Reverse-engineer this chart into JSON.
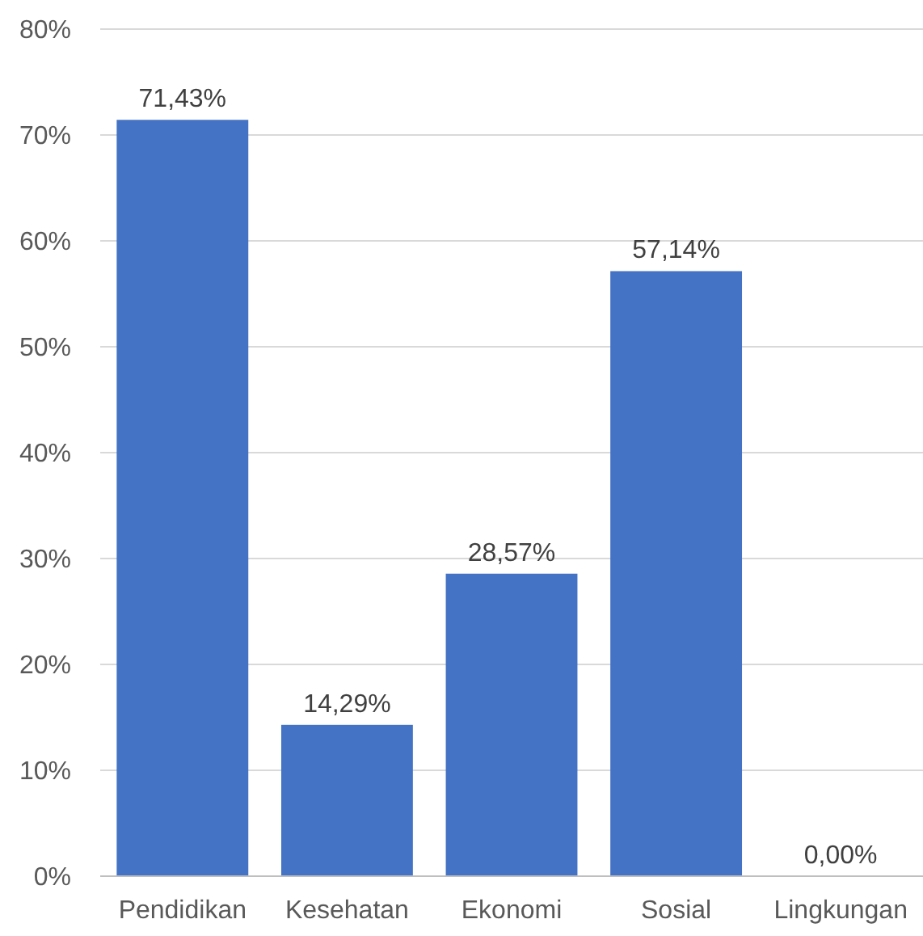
{
  "chart_data": {
    "type": "bar",
    "categories": [
      "Pendidikan",
      "Kesehatan",
      "Ekonomi",
      "Sosial",
      "Lingkungan"
    ],
    "values": [
      71.43,
      14.29,
      28.57,
      57.14,
      0
    ],
    "value_labels": [
      "71,43%",
      "14,29%",
      "28,57%",
      "57,14%",
      "0,00%"
    ],
    "color": "#4472c4",
    "ylim": [
      0,
      80
    ],
    "yticks": [
      {
        "value": 0,
        "label": "0%"
      },
      {
        "value": 10,
        "label": "10%"
      },
      {
        "value": 20,
        "label": "20%"
      },
      {
        "value": 30,
        "label": "30%"
      },
      {
        "value": 40,
        "label": "40%"
      },
      {
        "value": 50,
        "label": "50%"
      },
      {
        "value": 60,
        "label": "60%"
      },
      {
        "value": 70,
        "label": "70%"
      },
      {
        "value": 80,
        "label": "80%"
      }
    ],
    "grid": "y"
  }
}
